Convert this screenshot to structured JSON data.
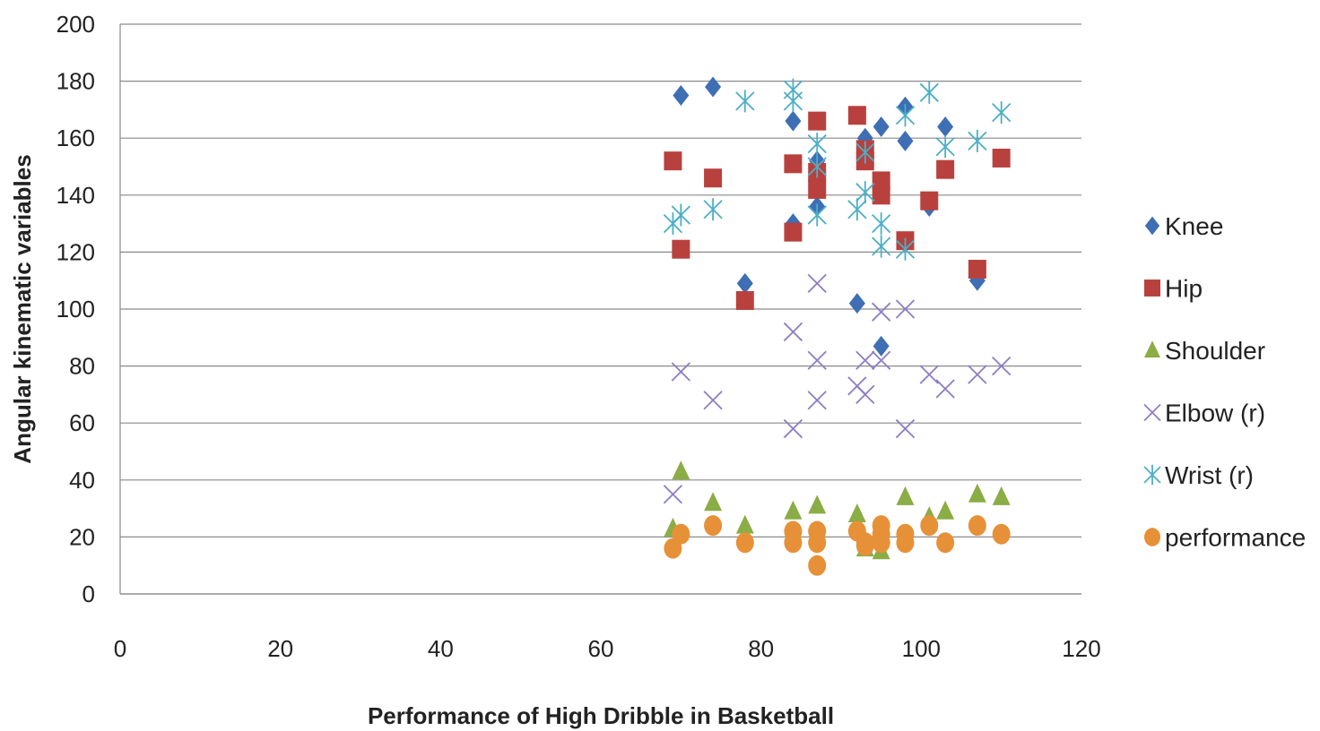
{
  "chart_data": {
    "type": "scatter",
    "title": "",
    "xlabel": "Performance of High Dribble in Basketball",
    "ylabel": "Angular kinematic variables",
    "xlim": [
      0,
      120
    ],
    "ylim": [
      0,
      200
    ],
    "x_ticks": [
      0,
      20,
      40,
      60,
      80,
      100,
      120
    ],
    "y_ticks": [
      0,
      20,
      40,
      60,
      80,
      100,
      120,
      140,
      160,
      180,
      200
    ],
    "grid": "horizontal",
    "legend_position": "right",
    "series": [
      {
        "name": "Knee",
        "marker": "diamond",
        "color": "#3E6EB4",
        "points": [
          [
            70,
            175
          ],
          [
            74,
            178
          ],
          [
            78,
            109
          ],
          [
            84,
            166
          ],
          [
            84,
            130
          ],
          [
            87,
            152
          ],
          [
            87,
            136
          ],
          [
            92,
            102
          ],
          [
            93,
            160
          ],
          [
            95,
            164
          ],
          [
            95,
            87
          ],
          [
            98,
            171
          ],
          [
            98,
            159
          ],
          [
            101,
            136
          ],
          [
            103,
            164
          ],
          [
            107,
            110
          ]
        ]
      },
      {
        "name": "Hip",
        "marker": "square",
        "color": "#B8413E",
        "points": [
          [
            69,
            152
          ],
          [
            70,
            121
          ],
          [
            74,
            146
          ],
          [
            78,
            103
          ],
          [
            84,
            151
          ],
          [
            84,
            127
          ],
          [
            87,
            166
          ],
          [
            87,
            148
          ],
          [
            87,
            142
          ],
          [
            92,
            168
          ],
          [
            93,
            156
          ],
          [
            93,
            152
          ],
          [
            95,
            145
          ],
          [
            95,
            140
          ],
          [
            98,
            124
          ],
          [
            101,
            138
          ],
          [
            103,
            149
          ],
          [
            107,
            114
          ],
          [
            110,
            153
          ]
        ]
      },
      {
        "name": "Shoulder",
        "marker": "triangle",
        "color": "#8AAD45",
        "points": [
          [
            69,
            23
          ],
          [
            70,
            43
          ],
          [
            74,
            32
          ],
          [
            78,
            24
          ],
          [
            84,
            29
          ],
          [
            87,
            31
          ],
          [
            92,
            28
          ],
          [
            93,
            16
          ],
          [
            95,
            15
          ],
          [
            98,
            34
          ],
          [
            101,
            27
          ],
          [
            103,
            29
          ],
          [
            107,
            35
          ],
          [
            110,
            34
          ]
        ]
      },
      {
        "name": "Elbow (r)",
        "marker": "x",
        "color": "#8E7CC3",
        "points": [
          [
            69,
            35
          ],
          [
            70,
            78
          ],
          [
            74,
            68
          ],
          [
            84,
            92
          ],
          [
            84,
            58
          ],
          [
            87,
            109
          ],
          [
            87,
            82
          ],
          [
            87,
            68
          ],
          [
            92,
            73
          ],
          [
            93,
            82
          ],
          [
            93,
            70
          ],
          [
            95,
            99
          ],
          [
            95,
            82
          ],
          [
            98,
            100
          ],
          [
            98,
            58
          ],
          [
            101,
            77
          ],
          [
            103,
            72
          ],
          [
            107,
            77
          ],
          [
            110,
            80
          ]
        ]
      },
      {
        "name": "Wrist (r)",
        "marker": "asterisk",
        "color": "#4BAFC6",
        "points": [
          [
            69,
            130
          ],
          [
            70,
            133
          ],
          [
            74,
            135
          ],
          [
            78,
            173
          ],
          [
            84,
            177
          ],
          [
            84,
            173
          ],
          [
            87,
            158
          ],
          [
            87,
            150
          ],
          [
            87,
            133
          ],
          [
            92,
            135
          ],
          [
            93,
            155
          ],
          [
            93,
            141
          ],
          [
            95,
            130
          ],
          [
            95,
            122
          ],
          [
            98,
            168
          ],
          [
            98,
            121
          ],
          [
            101,
            176
          ],
          [
            103,
            157
          ],
          [
            107,
            159
          ],
          [
            110,
            169
          ]
        ]
      },
      {
        "name": "performance",
        "marker": "circle",
        "color": "#E69138",
        "points": [
          [
            69,
            16
          ],
          [
            70,
            21
          ],
          [
            74,
            24
          ],
          [
            78,
            18
          ],
          [
            84,
            22
          ],
          [
            84,
            18
          ],
          [
            87,
            22
          ],
          [
            87,
            18
          ],
          [
            87,
            10
          ],
          [
            92,
            22
          ],
          [
            93,
            18
          ],
          [
            93,
            17
          ],
          [
            95,
            24
          ],
          [
            95,
            21
          ],
          [
            95,
            18
          ],
          [
            98,
            21
          ],
          [
            98,
            18
          ],
          [
            101,
            24
          ],
          [
            103,
            18
          ],
          [
            107,
            24
          ],
          [
            110,
            21
          ]
        ]
      }
    ]
  }
}
